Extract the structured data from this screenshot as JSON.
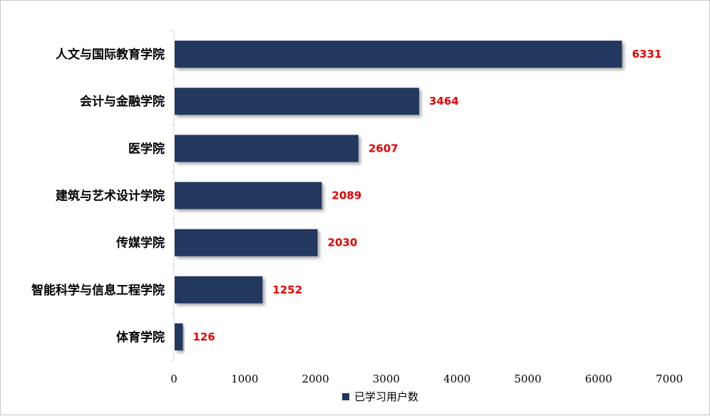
{
  "chart_data": {
    "type": "bar",
    "orientation": "horizontal",
    "categories": [
      "人文与国际教育学院",
      "会计与金融学院",
      "医学院",
      "建筑与艺术设计学院",
      "传媒学院",
      "智能科学与信息工程学院",
      "体育学院"
    ],
    "series": [
      {
        "name": "已学习用户数",
        "values": [
          6331,
          3464,
          2607,
          2089,
          2030,
          1252,
          126
        ]
      }
    ],
    "value_labels": [
      "6331",
      "3464",
      "2607",
      "2089",
      "2030",
      "1252",
      "126"
    ],
    "xlim": [
      0,
      7000
    ],
    "xticks": [
      "0",
      "1000",
      "2000",
      "3000",
      "4000",
      "5000",
      "6000",
      "7000"
    ],
    "grid": false,
    "legend_position": "bottom",
    "colors": {
      "bar": "#20375f",
      "value_label": "#e60000",
      "axis": "#d9d9d9"
    }
  }
}
